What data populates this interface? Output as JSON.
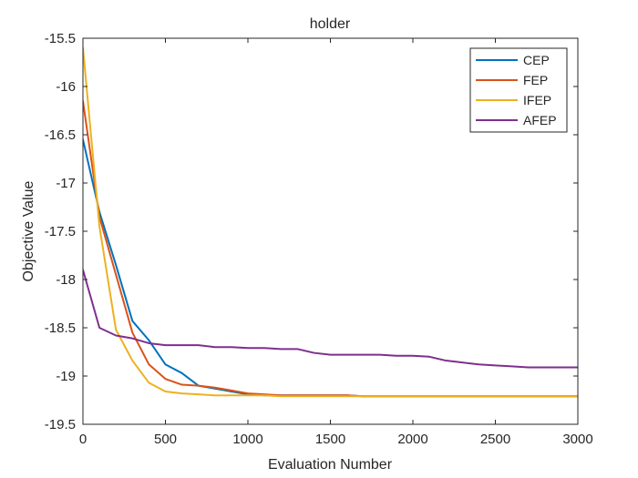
{
  "chart_data": {
    "type": "line",
    "title": "holder",
    "xlabel": "Evaluation Number",
    "ylabel": "Objective Value",
    "xlim": [
      0,
      3000
    ],
    "ylim": [
      -19.5,
      -15.5
    ],
    "xticks": [
      0,
      500,
      1000,
      1500,
      2000,
      2500,
      3000
    ],
    "yticks": [
      -15.5,
      -16,
      -16.5,
      -17,
      -17.5,
      -18,
      -18.5,
      -19,
      -19.5
    ],
    "xtick_labels": [
      "0",
      "500",
      "1000",
      "1500",
      "2000",
      "2500",
      "3000"
    ],
    "ytick_labels": [
      "-15.5",
      "-16",
      "-16.5",
      "-17",
      "-17.5",
      "-18",
      "-18.5",
      "-19",
      "-19.5"
    ],
    "grid": false,
    "legend_position": "top-right",
    "series": [
      {
        "name": "CEP",
        "color": "#0072BD",
        "x": [
          0,
          100,
          200,
          300,
          400,
          500,
          600,
          700,
          800,
          900,
          1000,
          1100,
          1200,
          1300,
          1400,
          1500,
          1600,
          1700,
          1800,
          1900,
          2000,
          2100,
          2200,
          2300,
          2400,
          2500,
          2600,
          2700,
          2800,
          2900,
          3000
        ],
        "values": [
          -16.55,
          -17.3,
          -17.85,
          -18.43,
          -18.63,
          -18.88,
          -18.97,
          -19.1,
          -19.13,
          -19.16,
          -19.19,
          -19.2,
          -19.2,
          -19.2,
          -19.2,
          -19.2,
          -19.2,
          -19.21,
          -19.21,
          -19.21,
          -19.21,
          -19.21,
          -19.21,
          -19.21,
          -19.21,
          -19.21,
          -19.21,
          -19.21,
          -19.21,
          -19.21,
          -19.21
        ]
      },
      {
        "name": "FEP",
        "color": "#D95319",
        "x": [
          0,
          100,
          200,
          300,
          400,
          500,
          600,
          700,
          800,
          900,
          1000,
          1100,
          1200,
          1300,
          1400,
          1500,
          1600,
          1700,
          1800,
          1900,
          2000,
          2100,
          2200,
          2300,
          2400,
          2500,
          2600,
          2700,
          2800,
          2900,
          3000
        ],
        "values": [
          -16.15,
          -17.35,
          -17.95,
          -18.55,
          -18.88,
          -19.03,
          -19.09,
          -19.1,
          -19.12,
          -19.15,
          -19.18,
          -19.19,
          -19.2,
          -19.2,
          -19.2,
          -19.2,
          -19.2,
          -19.21,
          -19.21,
          -19.21,
          -19.21,
          -19.21,
          -19.21,
          -19.21,
          -19.21,
          -19.21,
          -19.21,
          -19.21,
          -19.21,
          -19.21,
          -19.21
        ]
      },
      {
        "name": "IFEP",
        "color": "#EDB120",
        "x": [
          0,
          100,
          200,
          300,
          400,
          500,
          600,
          700,
          800,
          900,
          1000,
          1100,
          1200,
          1300,
          1400,
          1500,
          1600,
          1700,
          1800,
          1900,
          2000,
          2100,
          2200,
          2300,
          2400,
          2500,
          2600,
          2700,
          2800,
          2900,
          3000
        ],
        "values": [
          -15.6,
          -17.45,
          -18.52,
          -18.84,
          -19.07,
          -19.16,
          -19.18,
          -19.19,
          -19.2,
          -19.2,
          -19.2,
          -19.2,
          -19.21,
          -19.21,
          -19.21,
          -19.21,
          -19.21,
          -19.21,
          -19.21,
          -19.21,
          -19.21,
          -19.21,
          -19.21,
          -19.21,
          -19.21,
          -19.21,
          -19.21,
          -19.21,
          -19.21,
          -19.21,
          -19.21
        ]
      },
      {
        "name": "AFEP",
        "color": "#7E2F8E",
        "x": [
          0,
          100,
          200,
          300,
          400,
          500,
          600,
          700,
          800,
          900,
          1000,
          1100,
          1200,
          1300,
          1400,
          1500,
          1600,
          1700,
          1800,
          1900,
          2000,
          2100,
          2200,
          2300,
          2400,
          2500,
          2600,
          2700,
          2800,
          2900,
          3000
        ],
        "values": [
          -17.9,
          -18.5,
          -18.58,
          -18.61,
          -18.66,
          -18.68,
          -18.68,
          -18.68,
          -18.7,
          -18.7,
          -18.71,
          -18.71,
          -18.72,
          -18.72,
          -18.76,
          -18.78,
          -18.78,
          -18.78,
          -18.78,
          -18.79,
          -18.79,
          -18.8,
          -18.84,
          -18.86,
          -18.88,
          -18.89,
          -18.9,
          -18.91,
          -18.91,
          -18.91,
          -18.91
        ]
      }
    ]
  }
}
